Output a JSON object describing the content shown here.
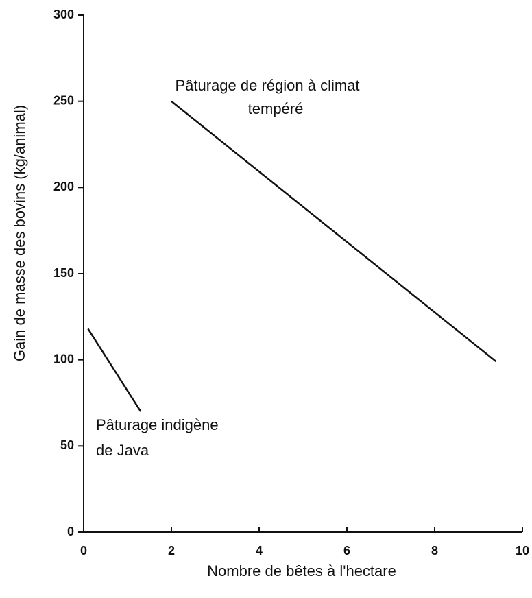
{
  "chart_data": {
    "type": "line",
    "x_label": "Nombre de bêtes à l'hectare",
    "y_label": "Gain de masse des bovins (kg/animal)",
    "series": [
      {
        "color": "#111111",
        "x": [
          2,
          9.4
        ],
        "values": [
          250,
          99
        ]
      },
      {
        "color": "#111111",
        "x": [
          0.1,
          1.3
        ],
        "values": [
          118,
          70
        ]
      }
    ],
    "annotations": [
      {
        "lines": [
          "Pâturage de région à climat",
          "tempéré"
        ]
      },
      {
        "lines": [
          "Pâturage indigène",
          "de Java"
        ]
      }
    ],
    "xlim": [
      0,
      10
    ],
    "xticks": [
      0,
      2,
      4,
      6,
      8,
      10
    ],
    "ylim": [
      0,
      300
    ],
    "yticks": [
      0,
      50,
      100,
      150,
      200,
      250,
      300
    ],
    "grid": false
  }
}
